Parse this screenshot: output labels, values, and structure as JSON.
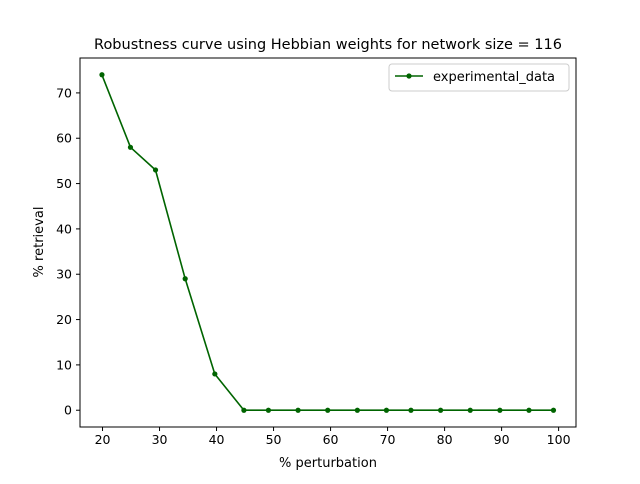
{
  "chart_data": {
    "type": "line",
    "title": "Robustness curve using Hebbian weights for network size = 116",
    "xlabel": "% perturbation",
    "ylabel": "% retrieval",
    "xlim": [
      16.05,
      103.05
    ],
    "ylim": [
      -3.7,
      77.7
    ],
    "xticks": [
      20,
      30,
      40,
      50,
      60,
      70,
      80,
      90,
      100
    ],
    "yticks": [
      0,
      10,
      20,
      30,
      40,
      50,
      60,
      70
    ],
    "grid": false,
    "legend_position": "upper right",
    "series": [
      {
        "name": "experimental_data",
        "color": "#006400",
        "marker": "circle",
        "x": [
          19.9,
          24.9,
          29.3,
          34.5,
          39.7,
          44.8,
          49.1,
          54.3,
          59.5,
          64.7,
          69.8,
          74.1,
          79.3,
          84.5,
          89.7,
          94.8,
          99.1
        ],
        "y": [
          74,
          58,
          53,
          29,
          8,
          0,
          0,
          0,
          0,
          0,
          0,
          0,
          0,
          0,
          0,
          0,
          0
        ]
      }
    ]
  }
}
